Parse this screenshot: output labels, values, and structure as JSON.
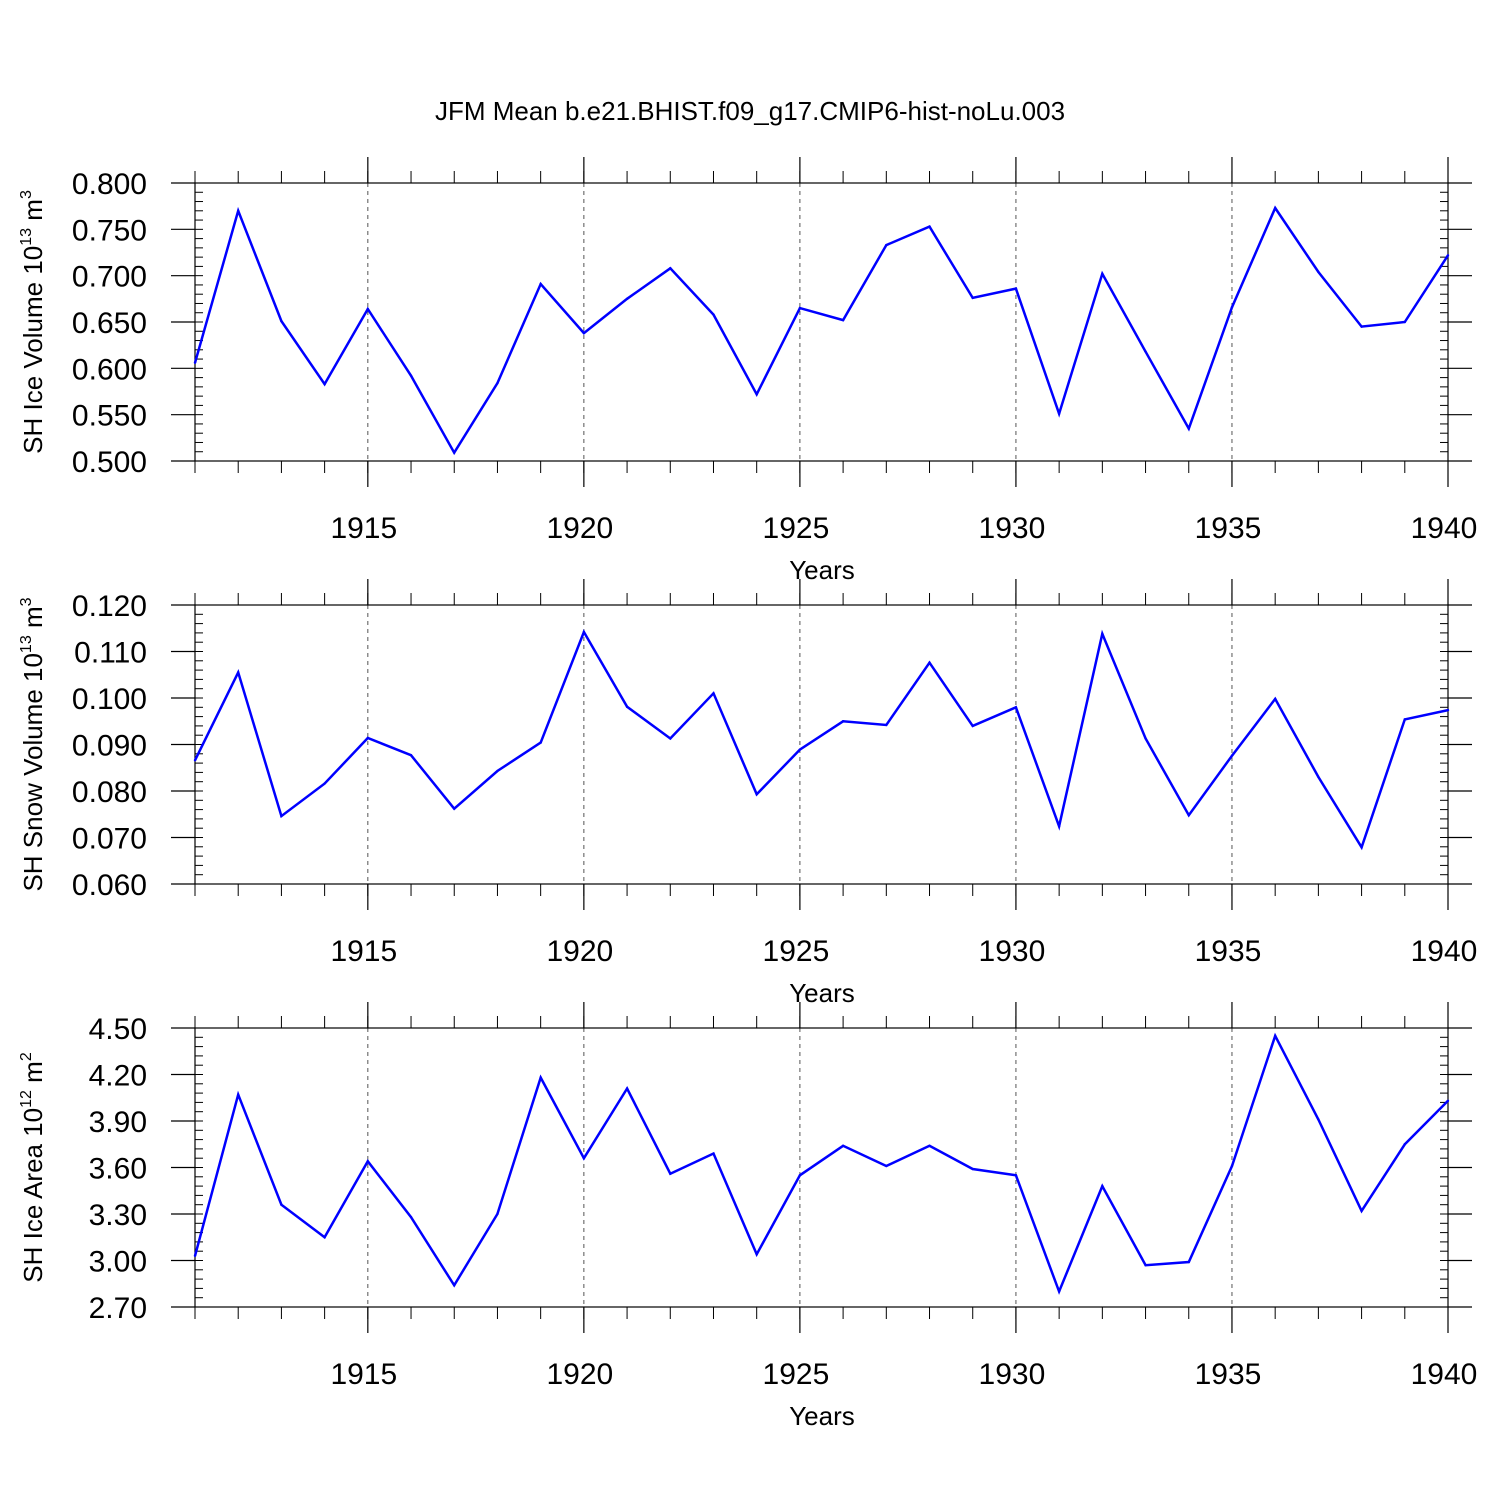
{
  "figure": {
    "title": "JFM Mean b.e21.BHIST.f09_g17.CMIP6-hist-noLu.003",
    "line_color": "#0000ff",
    "grid_color": "#555555"
  },
  "chart_data": [
    {
      "type": "line",
      "ylabel_main": "SH Ice Volume 10",
      "ylabel_exp": "13",
      "ylabel_unit": " m",
      "ylabel_unit_exp": "3",
      "xlabel": "Years",
      "xlim": [
        1911,
        1940
      ],
      "ylim": [
        0.5,
        0.8
      ],
      "x_ticks": [
        1915,
        1920,
        1925,
        1930,
        1935,
        1940
      ],
      "y_ticks": [
        0.5,
        0.55,
        0.6,
        0.65,
        0.7,
        0.75,
        0.8
      ],
      "y_tick_labels": [
        "0.500",
        "0.550",
        "0.600",
        "0.650",
        "0.700",
        "0.750",
        "0.800"
      ],
      "y_minor_step": 0.01,
      "grid": "vertical dashed",
      "x": [
        1911,
        1912,
        1913,
        1914,
        1915,
        1916,
        1917,
        1918,
        1919,
        1920,
        1921,
        1922,
        1923,
        1924,
        1925,
        1926,
        1927,
        1928,
        1929,
        1930,
        1931,
        1932,
        1933,
        1934,
        1935,
        1936,
        1937,
        1938,
        1939,
        1940
      ],
      "values": [
        0.606,
        0.77,
        0.651,
        0.583,
        0.664,
        0.592,
        0.509,
        0.584,
        0.691,
        0.638,
        0.675,
        0.708,
        0.658,
        0.572,
        0.665,
        0.652,
        0.733,
        0.753,
        0.676,
        0.686,
        0.551,
        0.702,
        0.618,
        0.535,
        0.666,
        0.773,
        0.704,
        0.645,
        0.65,
        0.722
      ]
    },
    {
      "type": "line",
      "ylabel_main": "SH Snow Volume 10",
      "ylabel_exp": "13",
      "ylabel_unit": " m",
      "ylabel_unit_exp": "3",
      "xlabel": "Years",
      "xlim": [
        1911,
        1940
      ],
      "ylim": [
        0.06,
        0.12
      ],
      "x_ticks": [
        1915,
        1920,
        1925,
        1930,
        1935,
        1940
      ],
      "y_ticks": [
        0.06,
        0.07,
        0.08,
        0.09,
        0.1,
        0.11,
        0.12
      ],
      "y_tick_labels": [
        "0.060",
        "0.070",
        "0.080",
        "0.090",
        "0.100",
        "0.110",
        "0.120"
      ],
      "y_minor_step": 0.002,
      "grid": "vertical dashed",
      "x": [
        1911,
        1912,
        1913,
        1914,
        1915,
        1916,
        1917,
        1918,
        1919,
        1920,
        1921,
        1922,
        1923,
        1924,
        1925,
        1926,
        1927,
        1928,
        1929,
        1930,
        1931,
        1932,
        1933,
        1934,
        1935,
        1936,
        1937,
        1938,
        1939,
        1940
      ],
      "values": [
        0.0866,
        0.1055,
        0.0746,
        0.0816,
        0.0914,
        0.0877,
        0.0762,
        0.0843,
        0.0904,
        0.1142,
        0.0981,
        0.0913,
        0.101,
        0.0793,
        0.0889,
        0.095,
        0.0942,
        0.1076,
        0.094,
        0.098,
        0.0724,
        0.1138,
        0.0913,
        0.0748,
        0.0876,
        0.0998,
        0.083,
        0.0679,
        0.0954,
        0.0974
      ]
    },
    {
      "type": "line",
      "ylabel_main": "SH Ice Area 10",
      "ylabel_exp": "12",
      "ylabel_unit": " m",
      "ylabel_unit_exp": "2",
      "xlabel": "Years",
      "xlim": [
        1911,
        1940
      ],
      "ylim": [
        2.7,
        4.5
      ],
      "x_ticks": [
        1915,
        1920,
        1925,
        1930,
        1935,
        1940
      ],
      "y_ticks": [
        2.7,
        3.0,
        3.3,
        3.6,
        3.9,
        4.2,
        4.5
      ],
      "y_tick_labels": [
        "2.70",
        "3.00",
        "3.30",
        "3.60",
        "3.90",
        "4.20",
        "4.50"
      ],
      "y_minor_step": 0.06,
      "grid": "vertical dashed",
      "x": [
        1911,
        1912,
        1913,
        1914,
        1915,
        1916,
        1917,
        1918,
        1919,
        1920,
        1921,
        1922,
        1923,
        1924,
        1925,
        1926,
        1927,
        1928,
        1929,
        1930,
        1931,
        1932,
        1933,
        1934,
        1935,
        1936,
        1937,
        1938,
        1939,
        1940
      ],
      "values": [
        3.03,
        4.07,
        3.36,
        3.15,
        3.64,
        3.28,
        2.84,
        3.3,
        4.18,
        3.66,
        4.11,
        3.56,
        3.69,
        3.04,
        3.55,
        3.74,
        3.61,
        3.74,
        3.59,
        3.55,
        2.8,
        3.48,
        2.97,
        2.99,
        3.61,
        4.45,
        3.91,
        3.32,
        3.75,
        4.03
      ]
    }
  ]
}
